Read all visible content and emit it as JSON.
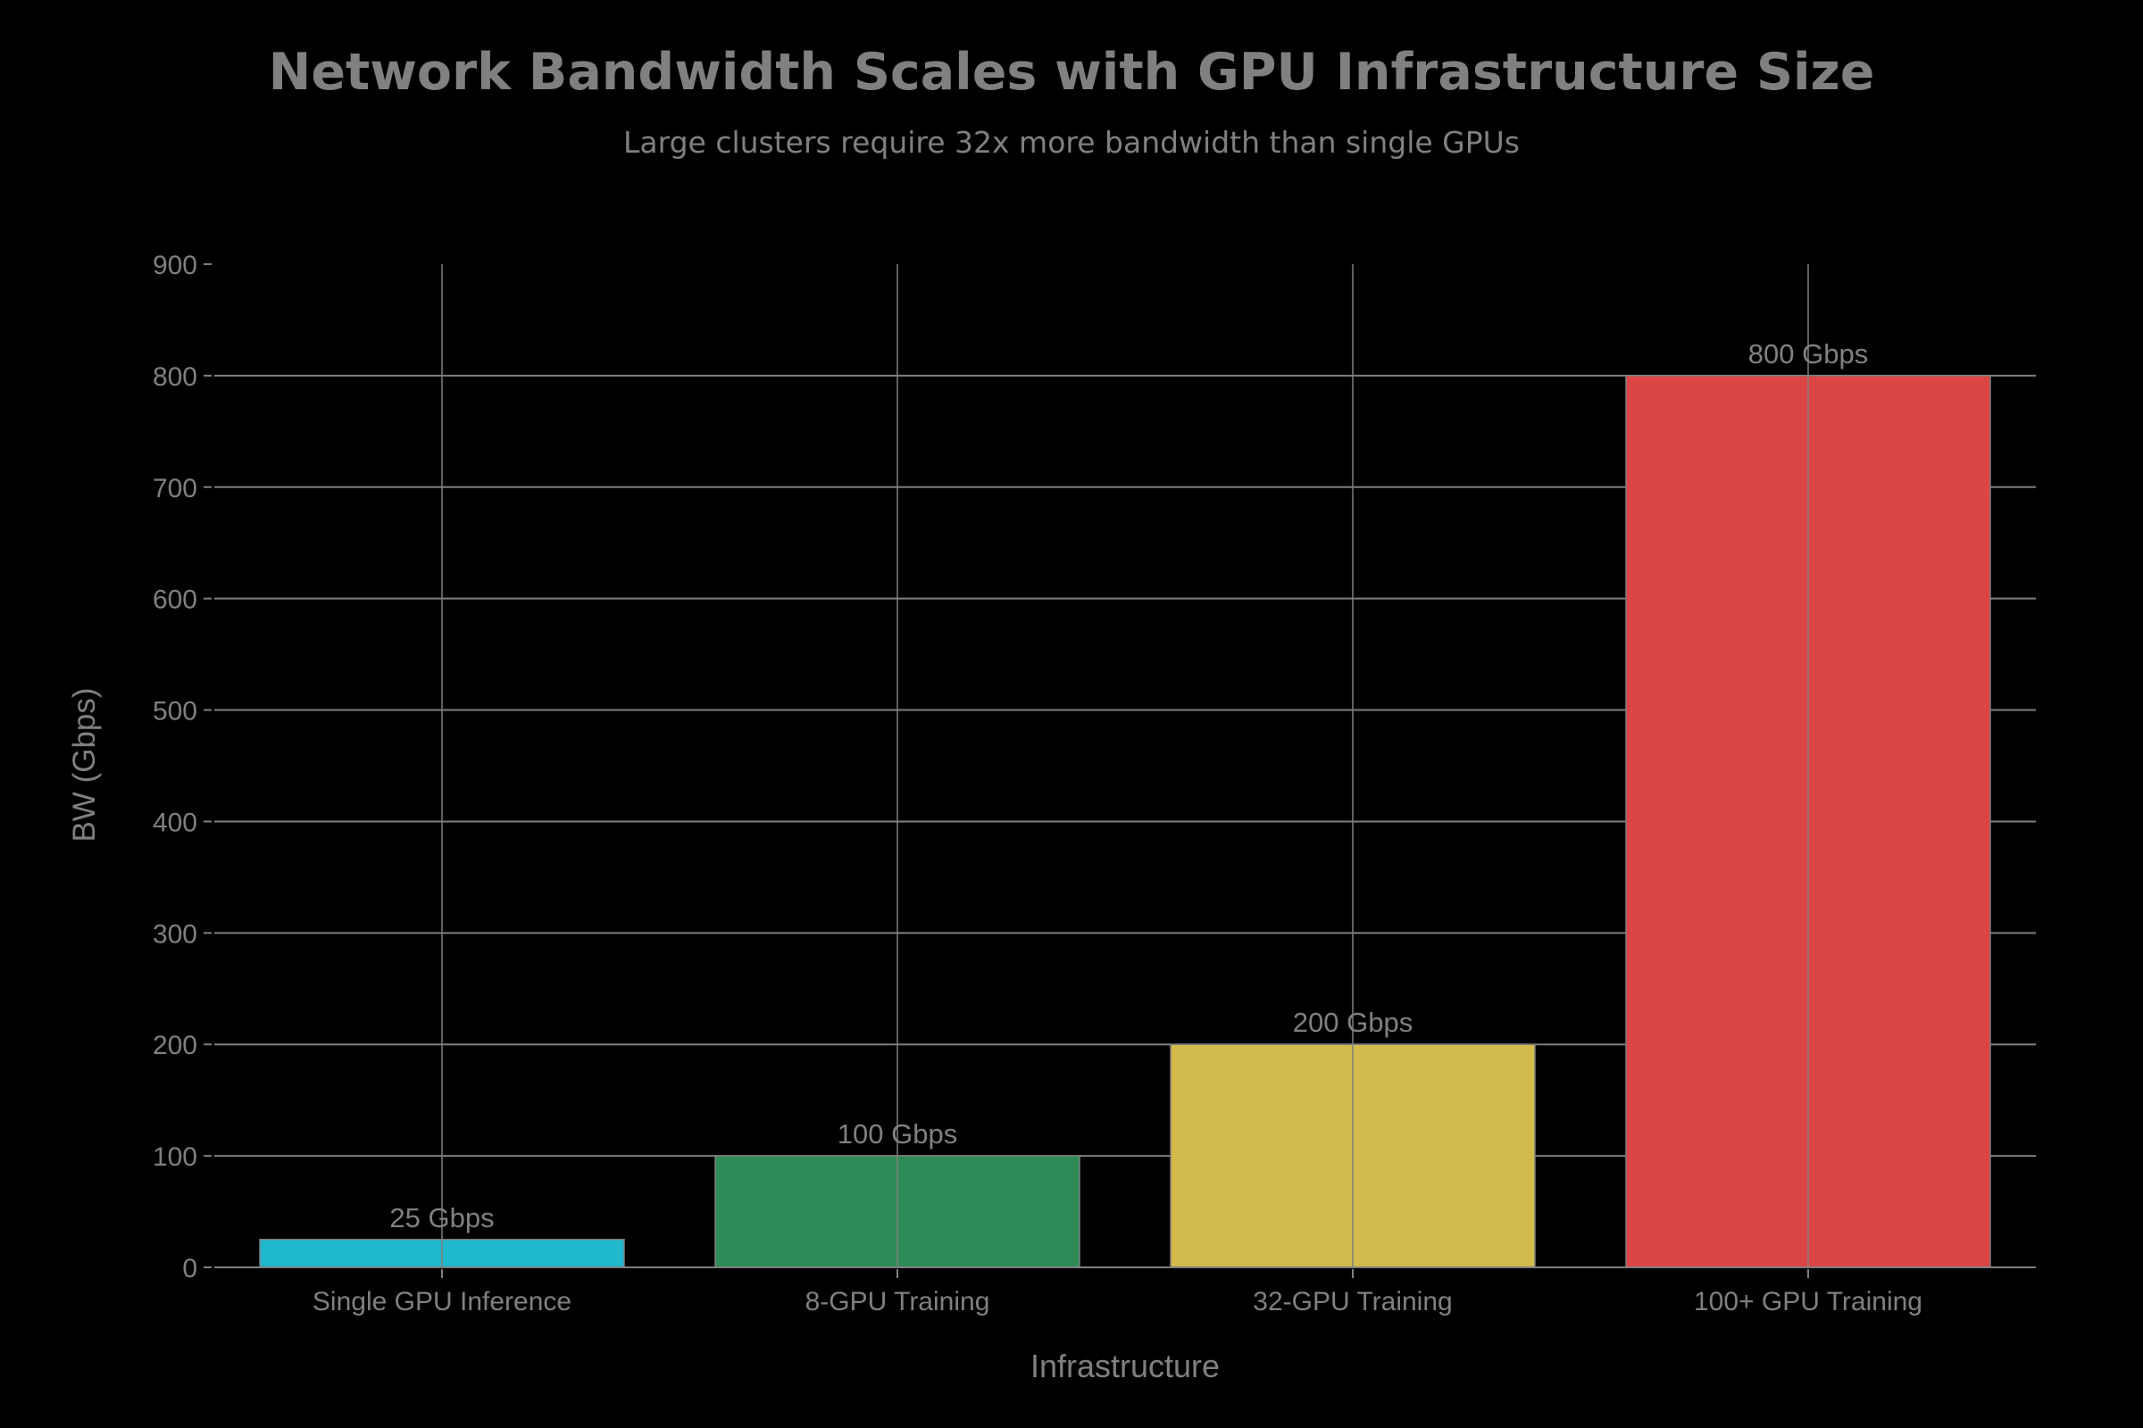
{
  "chart_data": {
    "type": "bar",
    "title": "Network Bandwidth Scales with GPU Infrastructure Size",
    "subtitle": "Large clusters require 32x more bandwidth than single GPUs",
    "xlabel": "Infrastructure",
    "ylabel": "BW (Gbps)",
    "categories": [
      "Single GPU Inference",
      "8-GPU Training",
      "32-GPU Training",
      "100+ GPU Training"
    ],
    "values": [
      25,
      100,
      200,
      800
    ],
    "data_labels": [
      "25 Gbps",
      "100 Gbps",
      "200 Gbps",
      "800 Gbps"
    ],
    "colors": [
      "#1FB8CD",
      "#2E8B57",
      "#D2BA4C",
      "#DB4545"
    ],
    "ylim": [
      0,
      900
    ],
    "yticks": [
      0,
      100,
      200,
      300,
      400,
      500,
      600,
      700,
      800,
      900
    ],
    "grid": true,
    "legend": "none"
  },
  "style": {
    "background": "#000000",
    "text_color": "#808080",
    "grid_color": "#7f7f7f"
  }
}
